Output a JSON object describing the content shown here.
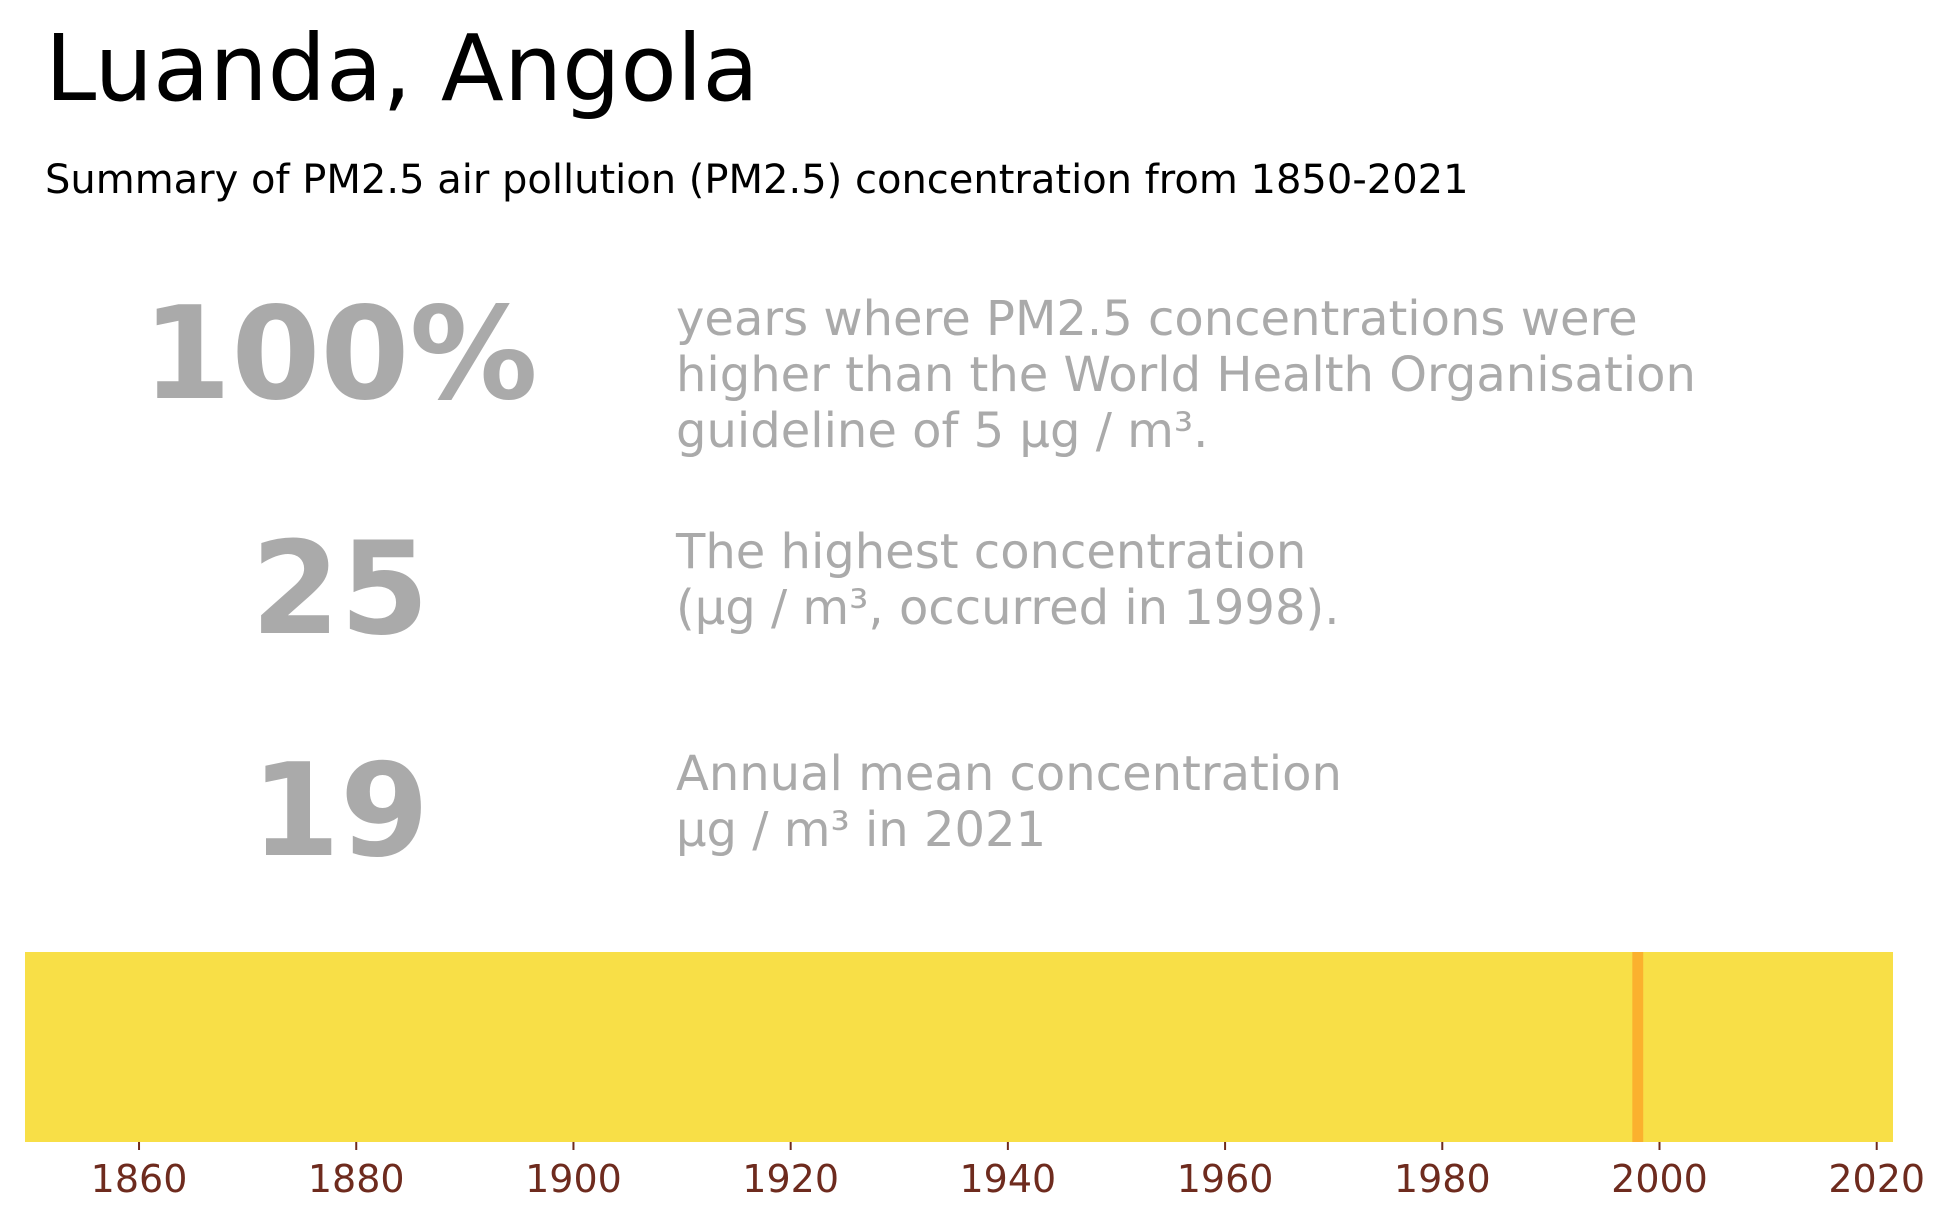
{
  "header": {
    "title": "Luanda, Angola",
    "subtitle": "Summary of PM2.5 air pollution (PM2.5) concentration from 1850-2021"
  },
  "stats": [
    {
      "value": "100%",
      "description": "years where PM2.5 concentrations were\nhigher than the World Health Organisation\nguideline of 5 μg / m³."
    },
    {
      "value": "25",
      "description": "The highest concentration\n(μg / m³, occurred in 1998)."
    },
    {
      "value": "19",
      "description": "Annual mean concentration\nμg / m³ in 2021"
    }
  ],
  "colors": {
    "stat_text": "#aaaaaa",
    "base_stripe": "#f8df47",
    "peak_stripe": "#fbb12e",
    "tick_label": "#6e2b1e"
  },
  "chart_data": {
    "type": "heatmap",
    "x_range": [
      1850,
      2021
    ],
    "x_ticks": [
      1860,
      1880,
      1900,
      1920,
      1940,
      1960,
      1980,
      2000,
      2020
    ],
    "base_level": "below peak",
    "highlight": [
      {
        "year": 1998,
        "value": 25
      }
    ],
    "grid": false
  }
}
